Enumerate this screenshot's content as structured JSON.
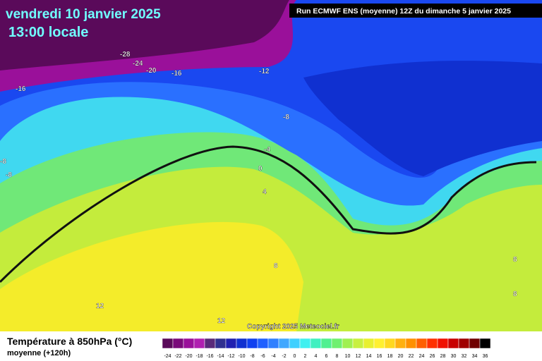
{
  "header": {
    "title": "vendredi 10 janvier 2025",
    "time": "13:00 locale"
  },
  "run_info": "Run ECMWF ENS (moyenne) 12Z du dimanche 5 janvier 2025",
  "contour_labels": [
    "-28",
    "-24",
    "-20",
    "-16",
    "-12",
    "-16",
    "-8",
    "-4",
    "0",
    "4",
    "-8",
    "-8",
    "8",
    "8",
    "8",
    "12",
    "12"
  ],
  "copyright": "Copyright 2025 Meteociel.fr",
  "legend": {
    "title": "Température à 850hPa (°C)",
    "subtitle": "moyenne   (+120h)",
    "ticks": [
      "-24",
      "-22",
      "-20",
      "-18",
      "-16",
      "-14",
      "-12",
      "-10",
      "-8",
      "-6",
      "-4",
      "-2",
      "0",
      "2",
      "4",
      "6",
      "8",
      "10",
      "12",
      "14",
      "16",
      "18",
      "20",
      "22",
      "24",
      "26",
      "28",
      "30",
      "32",
      "34",
      "36"
    ],
    "colors": [
      "#5a0a5a",
      "#7a0a7a",
      "#9a109a",
      "#b020b0",
      "#5a2a7a",
      "#303090",
      "#2020b0",
      "#1030d0",
      "#1040f0",
      "#2060ff",
      "#3080ff",
      "#40a8ff",
      "#40d0ff",
      "#40f0f0",
      "#40f0c0",
      "#50f090",
      "#70f070",
      "#a0f050",
      "#c8f040",
      "#e8f030",
      "#fff030",
      "#ffd820",
      "#ffb010",
      "#ff9000",
      "#ff6000",
      "#ff3000",
      "#f01000",
      "#c80000",
      "#a00000",
      "#700000",
      "#000000"
    ]
  }
}
